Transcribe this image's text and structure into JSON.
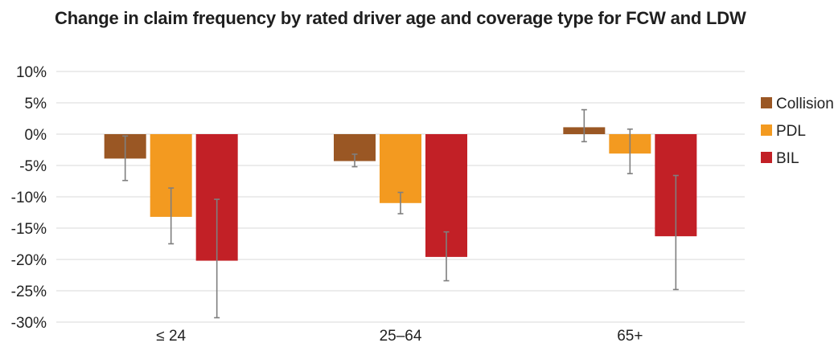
{
  "chart_data": {
    "type": "bar",
    "title": "Change in claim frequency by rated driver age and coverage type for FCW and LDW",
    "xlabel": "",
    "ylabel": "",
    "categories": [
      "≤ 24",
      "25–64",
      "65+"
    ],
    "ylim": [
      -30,
      10
    ],
    "yticks": [
      10,
      5,
      0,
      -5,
      -10,
      -15,
      -20,
      -25,
      -30
    ],
    "ytick_labels": [
      "10%",
      "5%",
      "0%",
      "-5%",
      "-10%",
      "-15%",
      "-20%",
      "-25%",
      "-30%"
    ],
    "grid": true,
    "legend_position": "right",
    "series": [
      {
        "name": "Collision",
        "color": "#9a5724",
        "values": [
          -3.9,
          -4.3,
          1.1
        ],
        "err_low": [
          -7.4,
          -5.2,
          -1.2
        ],
        "err_high": [
          -0.3,
          -3.2,
          3.9
        ]
      },
      {
        "name": "PDL",
        "color": "#f39a20",
        "values": [
          -13.2,
          -11.0,
          -3.1
        ],
        "err_low": [
          -17.5,
          -12.7,
          -6.3
        ],
        "err_high": [
          -8.6,
          -9.3,
          0.8
        ]
      },
      {
        "name": "BIL",
        "color": "#c22026",
        "values": [
          -20.2,
          -19.6,
          -16.3
        ],
        "err_low": [
          -29.3,
          -23.4,
          -24.8
        ],
        "err_high": [
          -10.4,
          -15.6,
          -6.6
        ]
      }
    ],
    "error_bar_color": "#7f7f7f",
    "gridline_color": "#d9d9d9"
  }
}
